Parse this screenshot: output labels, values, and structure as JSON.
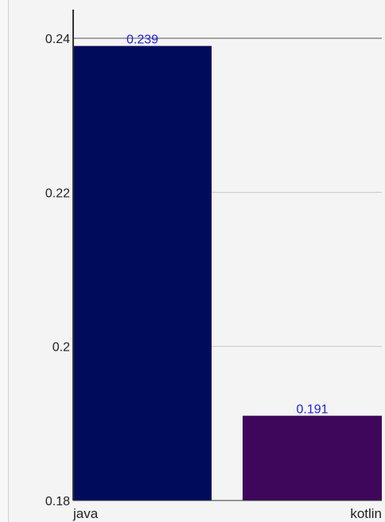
{
  "chart_data": {
    "type": "bar",
    "categories": [
      "java",
      "kotlin"
    ],
    "values": [
      0.239,
      0.191
    ],
    "value_labels": [
      "0.239",
      "0.191"
    ],
    "ylim": [
      0.18,
      0.24
    ],
    "yticks": [
      0.18,
      0.2,
      0.22,
      0.24
    ],
    "ytick_labels": [
      "0.18",
      "0.2",
      "0.22",
      "0.24"
    ],
    "bar_colors": [
      "#000b5c",
      "#3f075c"
    ],
    "data_label_color": "#1f1fd6",
    "grid": true,
    "legend": "none",
    "title": "",
    "xlabel": "",
    "ylabel": ""
  }
}
